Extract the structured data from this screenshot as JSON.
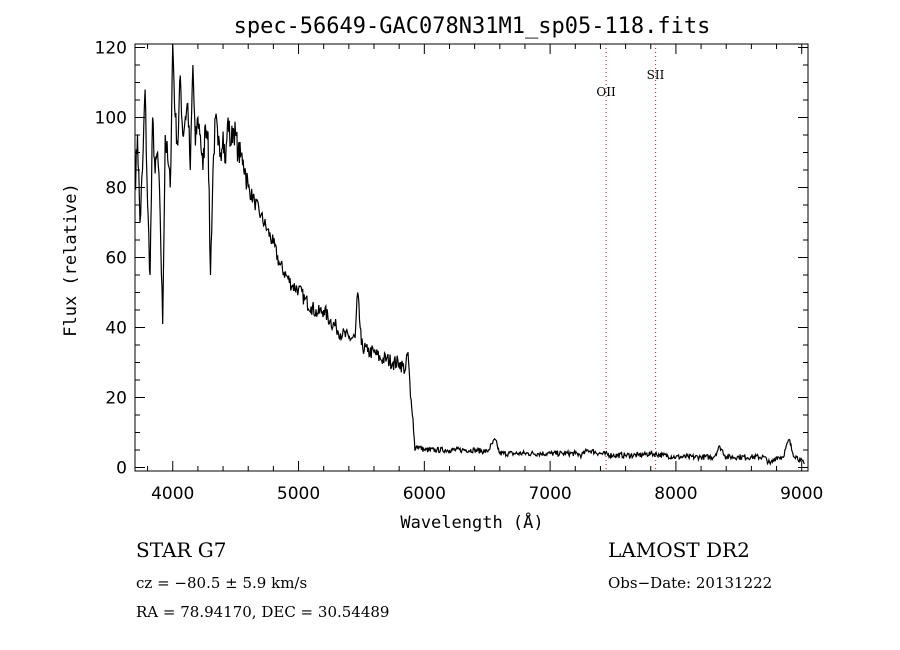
{
  "chart_data": {
    "type": "line",
    "title": "spec-56649-GAC078N31M1_sp05-118.fits",
    "xlabel": "Wavelength (Å)",
    "ylabel": "Flux (relative)",
    "xlim": [
      3700,
      9050
    ],
    "ylim": [
      -1,
      121
    ],
    "xticks": [
      4000,
      5000,
      6000,
      7000,
      8000,
      9000
    ],
    "yticks": [
      0,
      20,
      40,
      60,
      80,
      100,
      120
    ],
    "grid": false,
    "line_color": "#000000",
    "emission_line_color": "#cc3333",
    "emission_lines": [
      {
        "label": "OII",
        "x": 7445
      },
      {
        "label": "SII",
        "x": 7838
      }
    ],
    "series": [
      {
        "x": [
          3700,
          3720,
          3740,
          3760,
          3780,
          3800,
          3820,
          3840,
          3860,
          3880,
          3900,
          3920,
          3940,
          3960,
          3980,
          4000,
          4020,
          4040,
          4060,
          4080,
          4100,
          4120,
          4140,
          4160,
          4180,
          4200,
          4220,
          4240,
          4260,
          4280,
          4300,
          4320,
          4340,
          4360,
          4380,
          4400,
          4420,
          4440,
          4460,
          4480,
          4500,
          4520,
          4540,
          4560,
          4580,
          4600,
          4650,
          4700,
          4750,
          4800,
          4850,
          4900,
          4950,
          5000,
          5050,
          5100,
          5150,
          5200,
          5250,
          5300,
          5350,
          5400,
          5450,
          5470,
          5500,
          5550,
          5600,
          5650,
          5700,
          5750,
          5800,
          5850,
          5870,
          5890,
          5910,
          5925,
          5935,
          5950,
          6000,
          6100,
          6200,
          6300,
          6400,
          6500,
          6563,
          6600,
          6700,
          6800,
          6900,
          7000,
          7100,
          7200,
          7250,
          7300,
          7400,
          7500,
          7600,
          7700,
          7800,
          7900,
          8000,
          8100,
          8200,
          8300,
          8350,
          8400,
          8500,
          8600,
          8700,
          8750,
          8800,
          8850,
          8900,
          8930,
          8960,
          8990,
          9020
        ],
        "y": [
          80,
          95,
          70,
          85,
          108,
          75,
          55,
          100,
          84,
          90,
          72,
          41,
          95,
          88,
          80,
          121,
          100,
          92,
          112,
          95,
          100,
          104,
          85,
          115,
          92,
          100,
          95,
          85,
          98,
          96,
          55,
          85,
          100,
          92,
          90,
          96,
          87,
          100,
          92,
          97,
          95,
          90,
          89,
          88,
          84,
          80,
          76,
          72,
          68,
          64,
          58,
          55,
          52,
          51,
          48,
          46,
          44,
          45,
          42,
          40,
          38,
          37,
          37,
          50,
          35,
          33,
          33,
          31,
          31,
          30,
          30,
          28,
          33,
          20,
          14,
          5,
          6,
          6,
          5,
          5,
          5,
          5,
          5,
          4.5,
          8,
          4,
          4,
          4,
          4,
          4,
          4,
          4,
          3.5,
          5,
          4,
          3.5,
          3.5,
          3.5,
          4,
          3.5,
          3,
          3,
          3,
          3,
          6,
          3,
          3,
          3,
          3,
          1,
          3,
          3,
          8,
          4,
          3,
          2,
          1
        ]
      }
    ]
  },
  "info": {
    "object": "STAR    G7",
    "survey": "LAMOST DR2",
    "cz": "cz = −80.5 ± 5.9 km/s",
    "obs_date": "Obs−Date: 20131222",
    "radec": "RA =  78.94170, DEC =  30.54489"
  }
}
